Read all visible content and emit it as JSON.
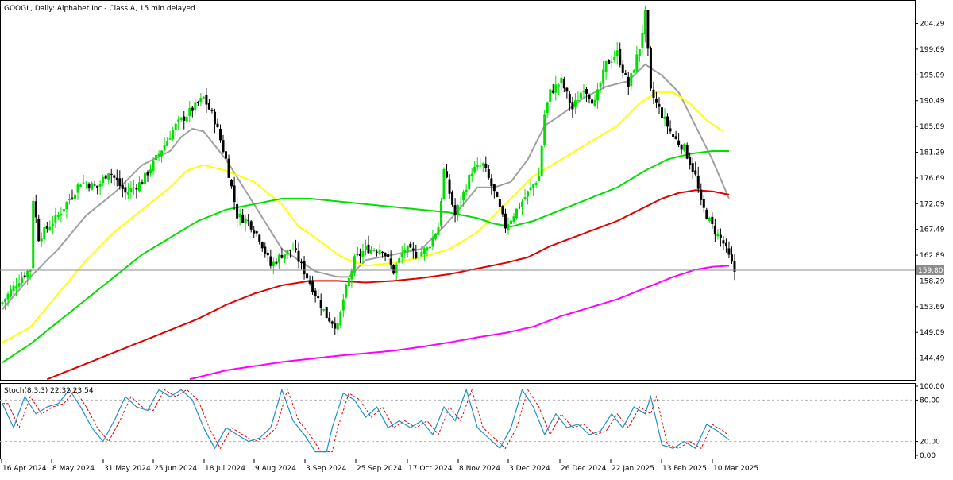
{
  "window": {
    "title": "GOOGL, Daily:  Alphabet Inc - Class A, 15 min delayed"
  },
  "colors": {
    "background": "#ffffff",
    "bull_candle": "#00e000",
    "bear_candle": "#000000",
    "ma_gray": "#a0a0a0",
    "ma_yellow": "#ffff00",
    "ma_green": "#00e000",
    "ma_red": "#e00000",
    "ma_magenta": "#ff00ff",
    "stoch_main": "#1e90c8",
    "stoch_signal": "#e00000",
    "price_badge": "#8c8c8c"
  },
  "chart_data": [
    {
      "type": "candlestick",
      "title": "GOOGL, Daily:  Alphabet Inc - Class A, 15 min delayed",
      "ylim": [
        140.6,
        208.2
      ],
      "price_ticks": [
        "204.29",
        "199.69",
        "195.09",
        "190.49",
        "185.89",
        "181.29",
        "176.69",
        "172.09",
        "167.49",
        "162.89",
        "158.29",
        "153.69",
        "149.09",
        "144.49"
      ],
      "current_price": "159.80",
      "x_labels": [
        "16 Apr 2024",
        "8 May 2024",
        "31 May 2024",
        "25 Jun 2024",
        "18 Jul 2024",
        "9 Aug 2024",
        "3 Sep 2024",
        "25 Sep 2024",
        "17 Oct 2024",
        "8 Nov 2024",
        "3 Dec 2024",
        "26 Dec 2024",
        "22 Jan 2025",
        "13 Feb 2025",
        "10 Mar 2025"
      ],
      "close_anchors": [
        [
          0,
          154.5
        ],
        [
          6,
          158.5
        ],
        [
          10,
          160.5
        ],
        [
          11,
          173
        ],
        [
          13,
          166
        ],
        [
          20,
          170
        ],
        [
          28,
          176
        ],
        [
          34,
          175
        ],
        [
          38,
          178
        ],
        [
          44,
          174
        ],
        [
          50,
          176
        ],
        [
          56,
          181
        ],
        [
          62,
          186
        ],
        [
          68,
          189
        ],
        [
          72,
          191
        ],
        [
          76,
          187
        ],
        [
          80,
          180
        ],
        [
          84,
          170
        ],
        [
          88,
          169
        ],
        [
          92,
          166
        ],
        [
          96,
          161
        ],
        [
          100,
          163
        ],
        [
          104,
          164
        ],
        [
          108,
          160
        ],
        [
          112,
          156
        ],
        [
          116,
          152
        ],
        [
          120,
          150
        ],
        [
          122,
          155
        ],
        [
          126,
          162
        ],
        [
          130,
          164
        ],
        [
          136,
          164
        ],
        [
          140,
          160
        ],
        [
          144,
          164
        ],
        [
          148,
          163
        ],
        [
          152,
          164
        ],
        [
          156,
          168
        ],
        [
          158,
          178
        ],
        [
          162,
          170
        ],
        [
          168,
          178
        ],
        [
          172,
          179
        ],
        [
          176,
          174
        ],
        [
          180,
          168
        ],
        [
          184,
          171
        ],
        [
          188,
          174
        ],
        [
          192,
          177
        ],
        [
          194,
          188
        ],
        [
          196,
          192
        ],
        [
          200,
          194
        ],
        [
          204,
          189
        ],
        [
          208,
          193
        ],
        [
          212,
          190
        ],
        [
          216,
          197
        ],
        [
          220,
          199
        ],
        [
          224,
          193
        ],
        [
          228,
          200
        ],
        [
          230,
          206
        ],
        [
          232,
          192
        ],
        [
          236,
          188
        ],
        [
          240,
          184
        ],
        [
          244,
          182
        ],
        [
          248,
          177
        ],
        [
          250,
          172
        ],
        [
          254,
          168
        ],
        [
          258,
          165
        ],
        [
          262,
          160
        ]
      ],
      "moving_averages": [
        {
          "color": "#a0a0a0",
          "points": [
            [
              0,
              153.2
            ],
            [
              10,
              159
            ],
            [
              20,
              164
            ],
            [
              30,
              170
            ],
            [
              40,
              174
            ],
            [
              50,
              179
            ],
            [
              60,
              181.5
            ],
            [
              64,
              184
            ],
            [
              68,
              185.5
            ],
            [
              72,
              185
            ],
            [
              80,
              180
            ],
            [
              90,
              172
            ],
            [
              100,
              164
            ],
            [
              106,
              162
            ],
            [
              112,
              160
            ],
            [
              120,
              159
            ],
            [
              124,
              159
            ],
            [
              130,
              162
            ],
            [
              140,
              163
            ],
            [
              150,
              164
            ],
            [
              158,
              168
            ],
            [
              165,
              172
            ],
            [
              170,
              175
            ],
            [
              176,
              175
            ],
            [
              182,
              176
            ],
            [
              188,
              180
            ],
            [
              194,
              186
            ],
            [
              200,
              188
            ],
            [
              208,
              191
            ],
            [
              216,
              193
            ],
            [
              224,
              194
            ],
            [
              230,
              197
            ],
            [
              236,
              195
            ],
            [
              242,
              192
            ],
            [
              248,
              186
            ],
            [
              254,
              180
            ],
            [
              260,
              173
            ]
          ]
        },
        {
          "color": "#ffff00",
          "points": [
            [
              0,
              147.3
            ],
            [
              10,
              150
            ],
            [
              20,
              156
            ],
            [
              30,
              162
            ],
            [
              40,
              167
            ],
            [
              50,
              171
            ],
            [
              60,
              175
            ],
            [
              66,
              178
            ],
            [
              72,
              179
            ],
            [
              80,
              178
            ],
            [
              90,
              176
            ],
            [
              100,
              172
            ],
            [
              106,
              168
            ],
            [
              112,
              166
            ],
            [
              120,
              163
            ],
            [
              124,
              162
            ],
            [
              130,
              161
            ],
            [
              140,
              161.5
            ],
            [
              150,
              162.5
            ],
            [
              160,
              164
            ],
            [
              170,
              167
            ],
            [
              176,
              170
            ],
            [
              182,
              173
            ],
            [
              190,
              177
            ],
            [
              200,
              180
            ],
            [
              210,
              183
            ],
            [
              220,
              186
            ],
            [
              228,
              190
            ],
            [
              234,
              192
            ],
            [
              240,
              192
            ],
            [
              246,
              190
            ],
            [
              252,
              187
            ],
            [
              258,
              185
            ]
          ]
        },
        {
          "color": "#00e000",
          "points": [
            [
              0,
              143.7
            ],
            [
              10,
              147
            ],
            [
              20,
              151
            ],
            [
              30,
              155
            ],
            [
              40,
              159
            ],
            [
              50,
              163
            ],
            [
              60,
              166
            ],
            [
              70,
              169
            ],
            [
              80,
              171
            ],
            [
              90,
              172
            ],
            [
              100,
              173
            ],
            [
              110,
              173
            ],
            [
              120,
              172.5
            ],
            [
              130,
              172
            ],
            [
              140,
              171.5
            ],
            [
              150,
              171
            ],
            [
              160,
              170.5
            ],
            [
              170,
              169.5
            ],
            [
              176,
              168.5
            ],
            [
              182,
              168
            ],
            [
              190,
              169
            ],
            [
              200,
              171
            ],
            [
              210,
              173
            ],
            [
              220,
              175
            ],
            [
              230,
              178
            ],
            [
              238,
              180
            ],
            [
              246,
              181
            ],
            [
              254,
              181.5
            ],
            [
              260,
              181.5
            ]
          ]
        },
        {
          "color": "#e00000",
          "points": [
            [
              16,
              140.7
            ],
            [
              30,
              143.5
            ],
            [
              50,
              147.5
            ],
            [
              70,
              151.5
            ],
            [
              80,
              154
            ],
            [
              90,
              156
            ],
            [
              100,
              157.5
            ],
            [
              110,
              158.3
            ],
            [
              120,
              158.3
            ],
            [
              130,
              158
            ],
            [
              140,
              158.3
            ],
            [
              150,
              158.8
            ],
            [
              160,
              159.5
            ],
            [
              170,
              160.5
            ],
            [
              180,
              161.5
            ],
            [
              188,
              162.5
            ],
            [
              196,
              164.5
            ],
            [
              204,
              166
            ],
            [
              212,
              167.5
            ],
            [
              220,
              169
            ],
            [
              228,
              171
            ],
            [
              236,
              173
            ],
            [
              242,
              174
            ],
            [
              248,
              174.5
            ],
            [
              254,
              174.3
            ],
            [
              260,
              173.7
            ]
          ]
        },
        {
          "color": "#ff00ff",
          "points": [
            [
              67,
              140.7
            ],
            [
              80,
              142.3
            ],
            [
              100,
              143.8
            ],
            [
              120,
              144.9
            ],
            [
              140,
              145.8
            ],
            [
              150,
              146.5
            ],
            [
              160,
              147.3
            ],
            [
              170,
              148.2
            ],
            [
              180,
              149
            ],
            [
              190,
              150.1
            ],
            [
              200,
              152
            ],
            [
              210,
              153.5
            ],
            [
              220,
              155
            ],
            [
              230,
              157
            ],
            [
              240,
              159
            ],
            [
              248,
              160.3
            ],
            [
              254,
              160.8
            ],
            [
              260,
              161
            ]
          ]
        }
      ]
    },
    {
      "type": "line",
      "title": "Stoch(8,3,3) 22.32 23.54",
      "ylim": [
        0,
        100
      ],
      "y_ticks": [
        "100.00",
        "80.00",
        "20.00",
        "0.00"
      ],
      "levels": [
        20,
        80
      ],
      "series_points": [
        [
          0,
          75
        ],
        [
          4,
          40
        ],
        [
          8,
          85
        ],
        [
          12,
          60
        ],
        [
          16,
          70
        ],
        [
          20,
          75
        ],
        [
          24,
          95
        ],
        [
          28,
          70
        ],
        [
          32,
          40
        ],
        [
          36,
          20
        ],
        [
          40,
          50
        ],
        [
          44,
          85
        ],
        [
          48,
          70
        ],
        [
          52,
          65
        ],
        [
          56,
          95
        ],
        [
          60,
          85
        ],
        [
          64,
          95
        ],
        [
          68,
          80
        ],
        [
          72,
          40
        ],
        [
          76,
          10
        ],
        [
          80,
          40
        ],
        [
          84,
          30
        ],
        [
          88,
          20
        ],
        [
          92,
          25
        ],
        [
          96,
          40
        ],
        [
          100,
          95
        ],
        [
          104,
          50
        ],
        [
          108,
          30
        ],
        [
          112,
          5
        ],
        [
          116,
          5
        ],
        [
          118,
          40
        ],
        [
          122,
          90
        ],
        [
          126,
          80
        ],
        [
          130,
          55
        ],
        [
          134,
          70
        ],
        [
          138,
          40
        ],
        [
          142,
          50
        ],
        [
          146,
          40
        ],
        [
          150,
          50
        ],
        [
          154,
          30
        ],
        [
          158,
          70
        ],
        [
          162,
          50
        ],
        [
          166,
          95
        ],
        [
          170,
          40
        ],
        [
          174,
          25
        ],
        [
          178,
          10
        ],
        [
          182,
          40
        ],
        [
          186,
          95
        ],
        [
          190,
          70
        ],
        [
          194,
          30
        ],
        [
          198,
          60
        ],
        [
          202,
          40
        ],
        [
          206,
          45
        ],
        [
          210,
          30
        ],
        [
          214,
          35
        ],
        [
          218,
          60
        ],
        [
          222,
          40
        ],
        [
          226,
          70
        ],
        [
          230,
          60
        ],
        [
          232,
          85
        ],
        [
          236,
          15
        ],
        [
          240,
          10
        ],
        [
          244,
          20
        ],
        [
          248,
          10
        ],
        [
          252,
          45
        ],
        [
          256,
          35
        ],
        [
          260,
          22.32
        ]
      ]
    }
  ]
}
